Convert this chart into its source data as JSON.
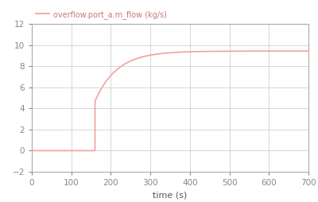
{
  "title": "",
  "xlabel": "time (s)",
  "ylabel": "",
  "legend_label": "overflow.port_a.m_flow (kg/s)",
  "line_color": "#f0a0a0",
  "background_color": "#ffffff",
  "grid_color": "#d0d0d0",
  "xlim": [
    0,
    700
  ],
  "ylim": [
    -2,
    12
  ],
  "xticks": [
    0,
    100,
    200,
    300,
    400,
    500,
    600,
    700
  ],
  "yticks": [
    -2,
    0,
    2,
    4,
    6,
    8,
    10,
    12
  ],
  "flat_start_end_x": 160,
  "flat_start_y": 0.0,
  "jump_y": 4.7,
  "asymptote_y": 9.45,
  "curve_start_x": 160,
  "curve_end_x": 700,
  "tick_color": "#888888",
  "xlabel_color": "#555555",
  "legend_text_color": "#cc7777",
  "spine_color": "#aaaaaa"
}
